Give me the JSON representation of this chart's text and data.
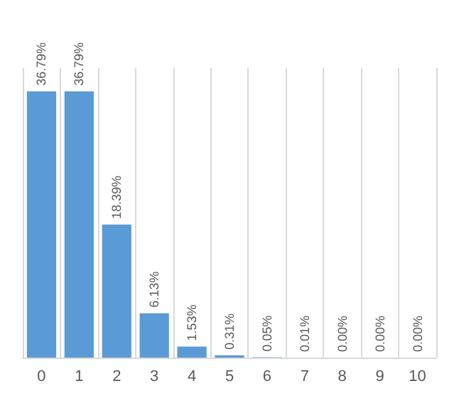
{
  "chart_data": {
    "type": "bar",
    "categories": [
      "0",
      "1",
      "2",
      "3",
      "4",
      "5",
      "6",
      "7",
      "8",
      "9",
      "10"
    ],
    "values": [
      36.79,
      36.79,
      18.39,
      6.13,
      1.53,
      0.31,
      0.05,
      0.01,
      0.0,
      0.0,
      0.0
    ],
    "value_labels": [
      "36.79%",
      "36.79%",
      "18.39%",
      "6.13%",
      "1.53%",
      "0.31%",
      "0.05%",
      "0.01%",
      "0.00%",
      "0.00%",
      "0.00%"
    ],
    "color": "#5b9bd5",
    "grid": "x",
    "tick_labels": "x"
  }
}
